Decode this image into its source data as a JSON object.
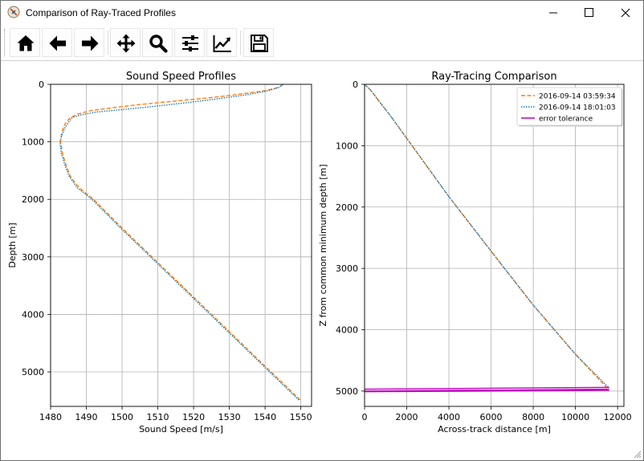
{
  "window": {
    "title": "Comparison of Ray-Traced Profiles"
  },
  "toolbar": {
    "buttons": [
      {
        "name": "home-button",
        "icon": "home-icon"
      },
      {
        "name": "back-button",
        "icon": "arrow-left-icon"
      },
      {
        "name": "forward-button",
        "icon": "arrow-right-icon"
      },
      {
        "name": "pan-button",
        "icon": "move-icon"
      },
      {
        "name": "zoom-button",
        "icon": "magnifier-icon"
      },
      {
        "name": "configure-subplots-button",
        "icon": "sliders-icon"
      },
      {
        "name": "edit-axis-button",
        "icon": "line-chart-icon"
      },
      {
        "name": "save-button",
        "icon": "floppy-disk-icon"
      }
    ]
  },
  "colors": {
    "series1": "#ff7f0e",
    "series2": "#1f77b4",
    "tolerance": "#bf00bf"
  },
  "chart_data": [
    {
      "type": "line",
      "title": "Sound Speed Profiles",
      "xlabel": "Sound Speed [m/s]",
      "ylabel": "Depth [m]",
      "xlim": [
        1480,
        1553
      ],
      "ylim": [
        5600,
        0
      ],
      "y_inverted": true,
      "grid": true,
      "xticks": [
        1480,
        1490,
        1500,
        1510,
        1520,
        1530,
        1540,
        1550
      ],
      "yticks": [
        0,
        1000,
        2000,
        3000,
        4000,
        5000
      ],
      "series": [
        {
          "style": "dashed",
          "x": [
            1545,
            1544,
            1540,
            1533,
            1525,
            1515,
            1505,
            1497,
            1491,
            1487.5,
            1485.5,
            1484.3,
            1483.5,
            1483.0,
            1482.8,
            1483.3,
            1484.3,
            1485.5,
            1488,
            1492,
            1500,
            1510,
            1520,
            1530,
            1540,
            1550
          ],
          "y": [
            0,
            50,
            110,
            170,
            230,
            290,
            350,
            410,
            460,
            520,
            580,
            660,
            760,
            880,
            1000,
            1200,
            1400,
            1600,
            1800,
            2000,
            2500,
            3100,
            3700,
            4300,
            4900,
            5500
          ]
        },
        {
          "style": "dotted",
          "x": [
            1545,
            1544,
            1541,
            1535,
            1527,
            1518,
            1508,
            1500,
            1493,
            1488.5,
            1486.0,
            1485.0,
            1484.0,
            1483.2,
            1482.6,
            1483.0,
            1484.0,
            1485.2,
            1487.5,
            1491.6,
            1499.6,
            1509.6,
            1519.6,
            1529.6,
            1539.6,
            1549.6
          ],
          "y": [
            0,
            50,
            110,
            180,
            250,
            320,
            390,
            440,
            480,
            530,
            580,
            660,
            760,
            880,
            1000,
            1200,
            1400,
            1600,
            1800,
            2000,
            2500,
            3100,
            3700,
            4300,
            4900,
            5500
          ]
        }
      ]
    },
    {
      "type": "line",
      "title": "Ray-Tracing Comparison",
      "xlabel": "Across-track distance [m]",
      "ylabel": "Z from common minimum depth [m]",
      "xlim": [
        0,
        12300
      ],
      "ylim": [
        5250,
        0
      ],
      "y_inverted": true,
      "grid": true,
      "xticks": [
        0,
        2000,
        4000,
        6000,
        8000,
        10000,
        12000
      ],
      "yticks": [
        0,
        1000,
        2000,
        3000,
        4000,
        5000
      ],
      "legend": "upper right",
      "series": [
        {
          "name": "2016-09-14 03:59:34",
          "style": "dashed",
          "x": [
            0,
            300,
            700,
            1200,
            2000,
            4000,
            6000,
            8000,
            10000,
            11500
          ],
          "y": [
            0,
            100,
            280,
            500,
            880,
            1830,
            2720,
            3600,
            4400,
            4950
          ]
        },
        {
          "name": "2016-09-14 18:01:03",
          "style": "dotted",
          "x": [
            0,
            300,
            700,
            1200,
            2000,
            4000,
            6000,
            8000,
            10000,
            11600
          ],
          "y": [
            0,
            100,
            280,
            500,
            880,
            1830,
            2720,
            3600,
            4400,
            4950
          ]
        },
        {
          "name": "error tolerance",
          "style": "solid",
          "lines": [
            {
              "x": [
                0,
                11600
              ],
              "y": [
                4970,
                4940
              ]
            },
            {
              "x": [
                0,
                11600
              ],
              "y": [
                5000,
                4970
              ]
            },
            {
              "x": [
                0,
                11600
              ],
              "y": [
                5010,
                4990
              ]
            }
          ]
        }
      ]
    }
  ]
}
